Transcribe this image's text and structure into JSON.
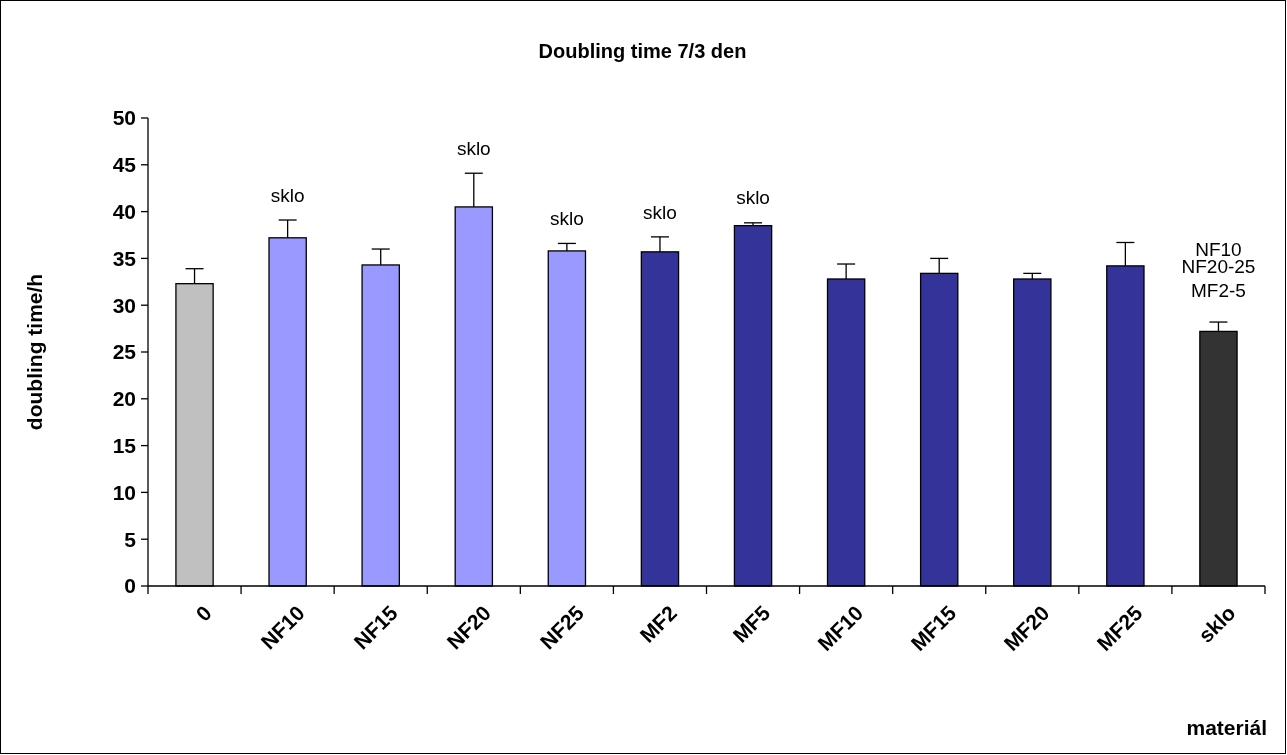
{
  "chart_data": {
    "type": "bar",
    "title": "Doubling time 7/3 den",
    "xlabel": "materiál",
    "ylabel": "doubling time/h",
    "categories": [
      "0",
      "NF10",
      "NF15",
      "NF20",
      "NF25",
      "MF2",
      "MF5",
      "MF10",
      "MF15",
      "MF20",
      "MF25",
      "sklo"
    ],
    "series": [
      {
        "values": [
          32.3,
          37.2,
          34.3,
          40.5,
          35.8,
          35.7,
          38.5,
          32.8,
          33.4,
          32.8,
          34.2,
          27.2
        ],
        "colors": [
          "#c0c0c0",
          "#9999ff",
          "#9999ff",
          "#9999ff",
          "#9999ff",
          "#333399",
          "#333399",
          "#333399",
          "#333399",
          "#333399",
          "#333399",
          "#333333"
        ],
        "errors": [
          1.6,
          1.9,
          1.7,
          3.6,
          0.8,
          1.6,
          0.3,
          1.6,
          1.6,
          0.6,
          2.5,
          1.0
        ]
      }
    ],
    "ylim": [
      0,
      50
    ],
    "yticks": [
      0,
      5,
      10,
      15,
      20,
      25,
      30,
      35,
      40,
      45,
      50
    ],
    "grid": false,
    "annotations": [
      {
        "text": "sklo",
        "x": "NF10",
        "y": 37.2
      },
      {
        "text": "sklo",
        "x": "NF20",
        "y": 40.5
      },
      {
        "text": "sklo",
        "x": "NF25",
        "y": 35.8
      },
      {
        "text": "sklo",
        "x": "MF2",
        "y": 35.7
      },
      {
        "text": "sklo",
        "x": "MF5",
        "y": 38.5
      },
      {
        "text": "NF10\nNF20-25\nMF2-5",
        "x": "sklo",
        "y": 27.2
      }
    ]
  }
}
